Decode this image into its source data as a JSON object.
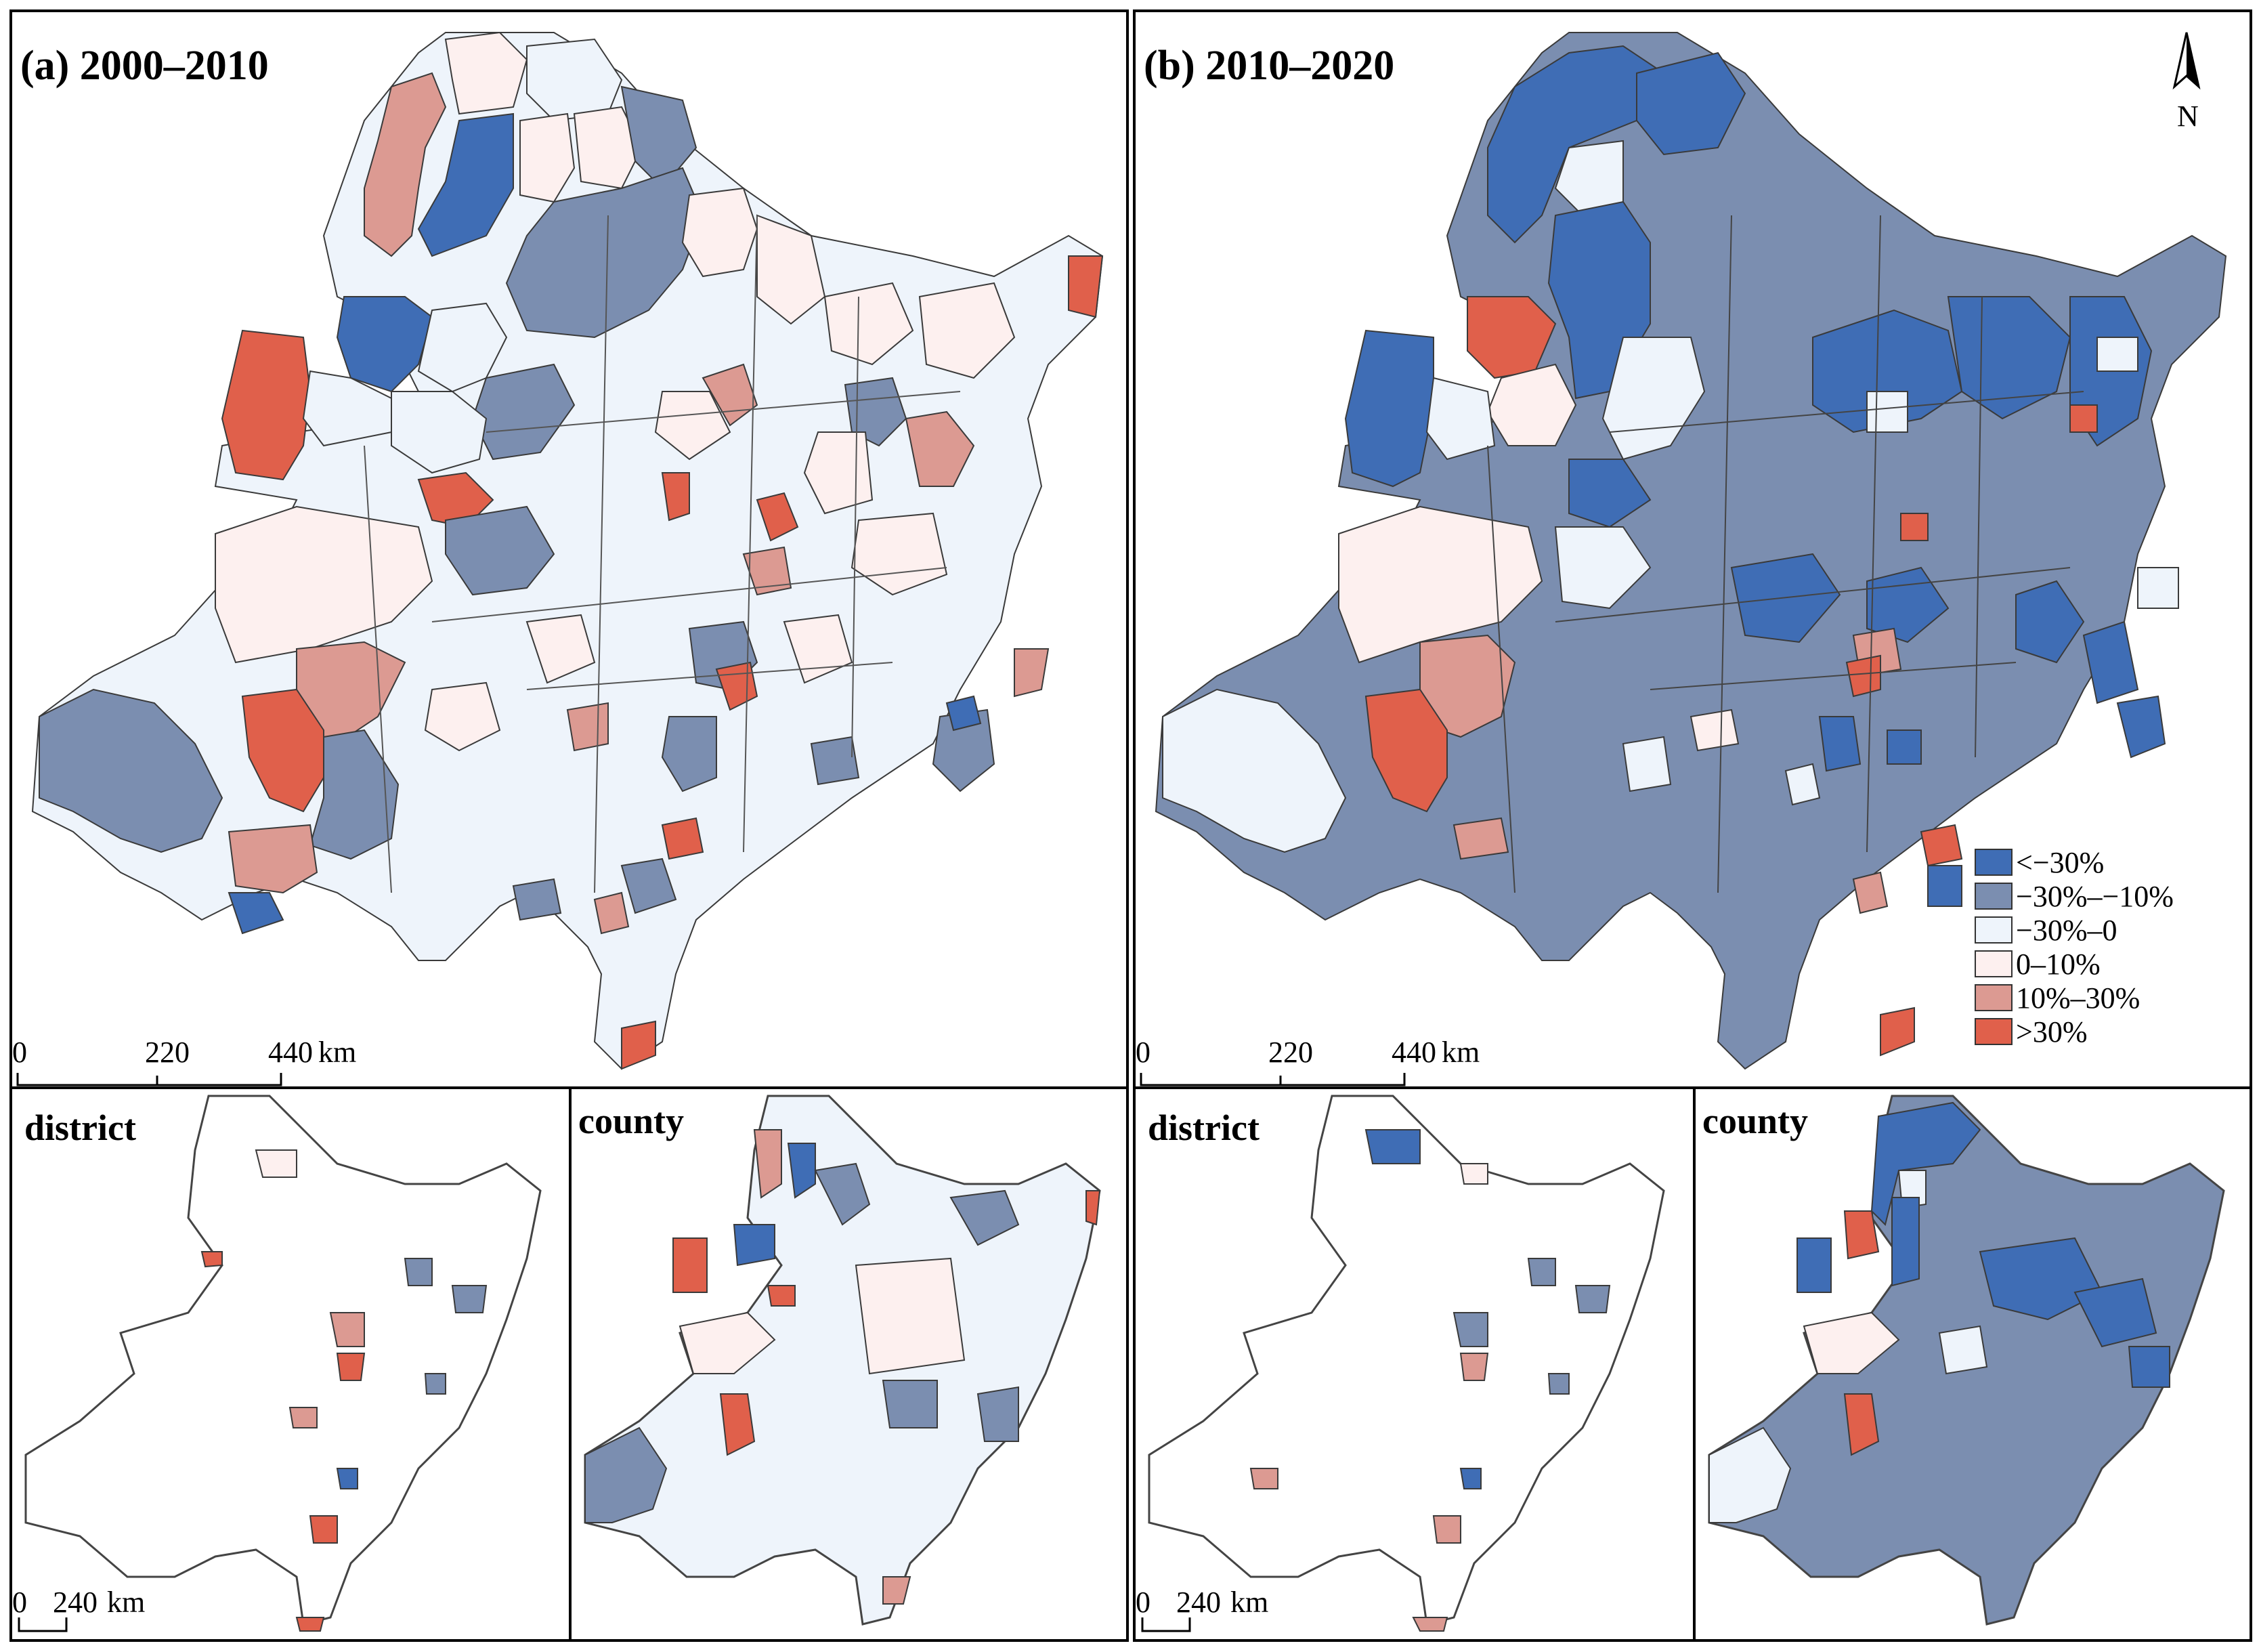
{
  "colors": {
    "c1": "#3f6db5",
    "c2": "#7b8eb0",
    "c3": "#eef4fb",
    "c4": "#fdf0ef",
    "c5": "#dc9a92",
    "c6": "#e0604b"
  },
  "panels": {
    "a": {
      "title": "(a) 2000–2010",
      "district_title": "district",
      "county_title": "county"
    },
    "b": {
      "title": "(b) 2010–2020",
      "district_title": "district",
      "county_title": "county"
    }
  },
  "scale_main": {
    "ticks": [
      "0",
      "220",
      "440"
    ],
    "unit": "km"
  },
  "scale_inset": {
    "ticks": [
      "0",
      "240"
    ],
    "unit": "km"
  },
  "north_arrow": "N",
  "legend": [
    {
      "label": "<−30%",
      "color_key": "c1"
    },
    {
      "label": "−30%–−10%",
      "color_key": "c2"
    },
    {
      "label": "−30%–0",
      "color_key": "c3"
    },
    {
      "label": "0–10%",
      "color_key": "c4"
    },
    {
      "label": "10%–30%",
      "color_key": "c5"
    },
    {
      "label": ">30%",
      "color_key": "c6"
    }
  ]
}
